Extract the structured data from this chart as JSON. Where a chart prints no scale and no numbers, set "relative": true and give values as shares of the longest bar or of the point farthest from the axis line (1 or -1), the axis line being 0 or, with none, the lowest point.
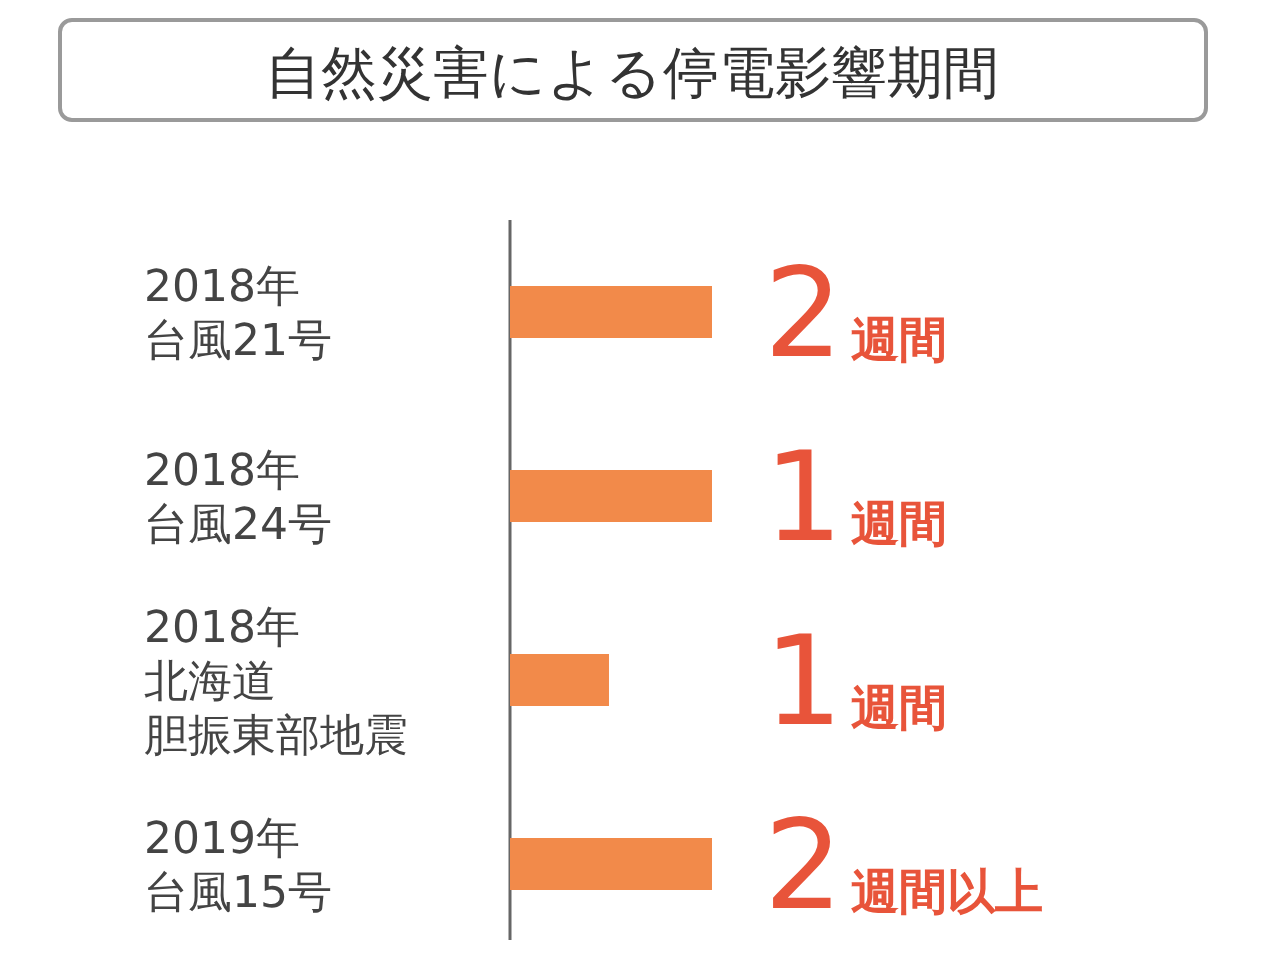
{
  "chart_data": {
    "type": "bar",
    "orientation": "horizontal",
    "relative": true,
    "title": "自然災害による停電影響期間",
    "categories": [
      "2018年台風21号",
      "2018年台風24号",
      "2018年北海道胆振東部地震",
      "2019年台風15号"
    ],
    "values": [
      1,
      1,
      0.49,
      1
    ],
    "annotations": [
      "2週間",
      "1週間",
      "1週間",
      "2週間以上"
    ],
    "color": "#f28a4a"
  }
}
